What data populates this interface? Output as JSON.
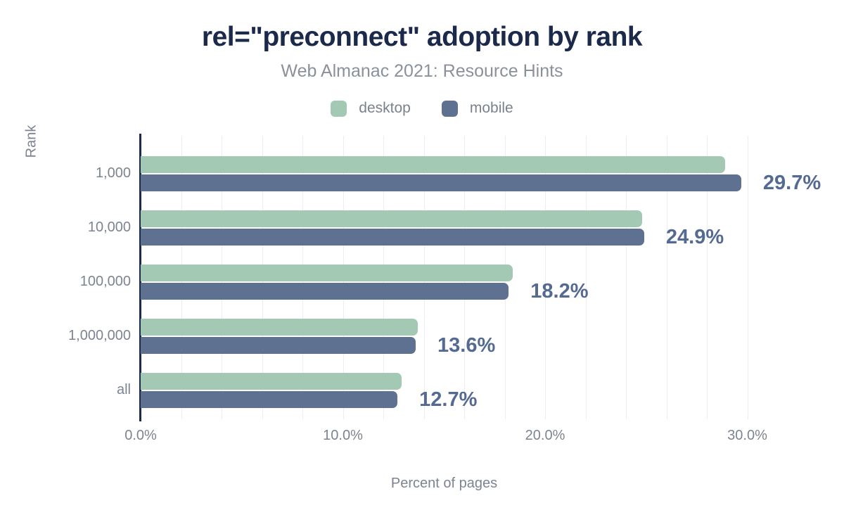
{
  "chart_data": {
    "type": "bar",
    "orientation": "horizontal",
    "title": "rel=\"preconnect\" adoption by rank",
    "subtitle": "Web Almanac 2021: Resource Hints",
    "xlabel": "Percent of pages",
    "ylabel": "Rank",
    "categories": [
      "1,000",
      "10,000",
      "100,000",
      "1,000,000",
      "all"
    ],
    "series": [
      {
        "name": "desktop",
        "color": "#a3c9b5",
        "values": [
          28.9,
          24.8,
          18.4,
          13.7,
          12.9
        ]
      },
      {
        "name": "mobile",
        "color": "#5e7190",
        "values": [
          29.7,
          24.9,
          18.2,
          13.6,
          12.7
        ]
      }
    ],
    "value_labels": [
      "29.7%",
      "24.9%",
      "18.2%",
      "13.6%",
      "12.7%"
    ],
    "x_ticks": [
      {
        "label": "0.0%",
        "value": 0
      },
      {
        "label": "10.0%",
        "value": 10
      },
      {
        "label": "20.0%",
        "value": 20
      },
      {
        "label": "30.0%",
        "value": 30
      }
    ],
    "xlim": [
      0,
      33
    ],
    "gridline_step_percent": 2,
    "gridline_max_percent": 30,
    "grid": true,
    "legend_position": "top",
    "colors": {
      "title": "#1b2a4a",
      "subtitle": "#8b919c",
      "axis_line": "#1b2b4b",
      "gridline": "#ededf1",
      "tick_label": "#7d8491",
      "value_label": "#556a92",
      "desktop": "#a3c9b5",
      "mobile": "#5e7190"
    }
  }
}
